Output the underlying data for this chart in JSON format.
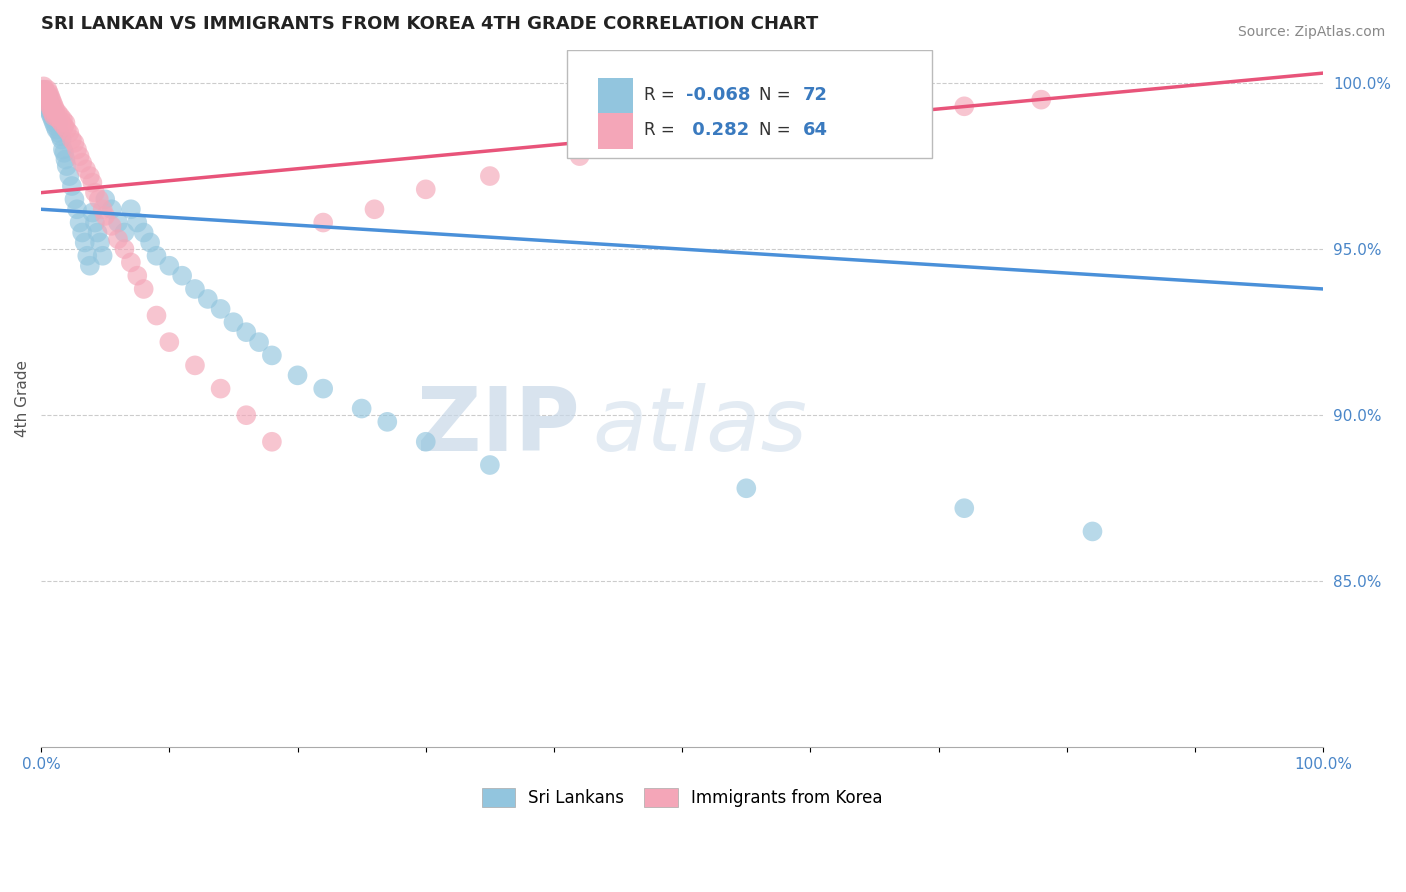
{
  "title": "SRI LANKAN VS IMMIGRANTS FROM KOREA 4TH GRADE CORRELATION CHART",
  "source_text": "Source: ZipAtlas.com",
  "ylabel": "4th Grade",
  "right_ytick_vals": [
    0.85,
    0.9,
    0.95,
    1.0
  ],
  "right_ytick_labels": [
    "85.0%",
    "90.0%",
    "95.0%",
    "100.0%"
  ],
  "legend_r_blue": "-0.068",
  "legend_n_blue": "72",
  "legend_r_pink": "0.282",
  "legend_n_pink": "64",
  "legend_label_blue": "Sri Lankans",
  "legend_label_pink": "Immigrants from Korea",
  "watermark_zip": "ZIP",
  "watermark_atlas": "atlas",
  "blue_color": "#92c5de",
  "pink_color": "#f4a6b8",
  "blue_line_color": "#4a90d9",
  "pink_line_color": "#e8547a",
  "background_color": "#ffffff",
  "grid_color": "#cccccc",
  "xlim": [
    0.0,
    1.0
  ],
  "ylim": [
    0.8,
    1.01
  ],
  "blue_scatter_x": [
    0.001,
    0.002,
    0.002,
    0.003,
    0.003,
    0.004,
    0.004,
    0.005,
    0.005,
    0.006,
    0.006,
    0.007,
    0.007,
    0.008,
    0.008,
    0.009,
    0.009,
    0.01,
    0.01,
    0.011,
    0.011,
    0.012,
    0.012,
    0.013,
    0.014,
    0.015,
    0.016,
    0.017,
    0.018,
    0.019,
    0.02,
    0.022,
    0.024,
    0.026,
    0.028,
    0.03,
    0.032,
    0.034,
    0.036,
    0.038,
    0.04,
    0.042,
    0.044,
    0.046,
    0.048,
    0.05,
    0.055,
    0.06,
    0.065,
    0.07,
    0.075,
    0.08,
    0.085,
    0.09,
    0.1,
    0.11,
    0.12,
    0.13,
    0.14,
    0.15,
    0.16,
    0.17,
    0.18,
    0.2,
    0.22,
    0.25,
    0.27,
    0.3,
    0.35,
    0.55,
    0.72,
    0.82
  ],
  "blue_scatter_y": [
    0.997,
    0.998,
    0.996,
    0.997,
    0.995,
    0.996,
    0.994,
    0.995,
    0.993,
    0.996,
    0.992,
    0.994,
    0.991,
    0.993,
    0.99,
    0.992,
    0.989,
    0.991,
    0.988,
    0.99,
    0.987,
    0.989,
    0.986,
    0.988,
    0.985,
    0.984,
    0.983,
    0.98,
    0.979,
    0.977,
    0.975,
    0.972,
    0.969,
    0.965,
    0.962,
    0.958,
    0.955,
    0.952,
    0.948,
    0.945,
    0.961,
    0.958,
    0.955,
    0.952,
    0.948,
    0.965,
    0.962,
    0.958,
    0.955,
    0.962,
    0.958,
    0.955,
    0.952,
    0.948,
    0.945,
    0.942,
    0.938,
    0.935,
    0.932,
    0.928,
    0.925,
    0.922,
    0.918,
    0.912,
    0.908,
    0.902,
    0.898,
    0.892,
    0.885,
    0.878,
    0.872,
    0.865
  ],
  "pink_scatter_x": [
    0.001,
    0.002,
    0.002,
    0.003,
    0.003,
    0.004,
    0.005,
    0.005,
    0.006,
    0.006,
    0.007,
    0.007,
    0.008,
    0.008,
    0.009,
    0.009,
    0.01,
    0.01,
    0.011,
    0.012,
    0.013,
    0.014,
    0.015,
    0.016,
    0.017,
    0.018,
    0.019,
    0.02,
    0.022,
    0.024,
    0.026,
    0.028,
    0.03,
    0.032,
    0.035,
    0.038,
    0.04,
    0.042,
    0.045,
    0.048,
    0.05,
    0.055,
    0.06,
    0.065,
    0.07,
    0.075,
    0.08,
    0.09,
    0.1,
    0.12,
    0.14,
    0.16,
    0.18,
    0.22,
    0.26,
    0.3,
    0.35,
    0.42,
    0.5,
    0.55,
    0.62,
    0.68,
    0.72,
    0.78
  ],
  "pink_scatter_y": [
    0.998,
    0.999,
    0.997,
    0.998,
    0.996,
    0.997,
    0.998,
    0.995,
    0.997,
    0.994,
    0.996,
    0.993,
    0.995,
    0.992,
    0.994,
    0.991,
    0.993,
    0.99,
    0.992,
    0.99,
    0.991,
    0.989,
    0.99,
    0.988,
    0.989,
    0.987,
    0.988,
    0.986,
    0.985,
    0.983,
    0.982,
    0.98,
    0.978,
    0.976,
    0.974,
    0.972,
    0.97,
    0.967,
    0.965,
    0.962,
    0.96,
    0.957,
    0.953,
    0.95,
    0.946,
    0.942,
    0.938,
    0.93,
    0.922,
    0.915,
    0.908,
    0.9,
    0.892,
    0.958,
    0.962,
    0.968,
    0.972,
    0.978,
    0.982,
    0.985,
    0.988,
    0.991,
    0.993,
    0.995
  ],
  "blue_line_x0": 0.0,
  "blue_line_x1": 1.0,
  "blue_line_y0": 0.962,
  "blue_line_y1": 0.938,
  "pink_line_x0": 0.0,
  "pink_line_x1": 1.0,
  "pink_line_y0": 0.967,
  "pink_line_y1": 1.003
}
